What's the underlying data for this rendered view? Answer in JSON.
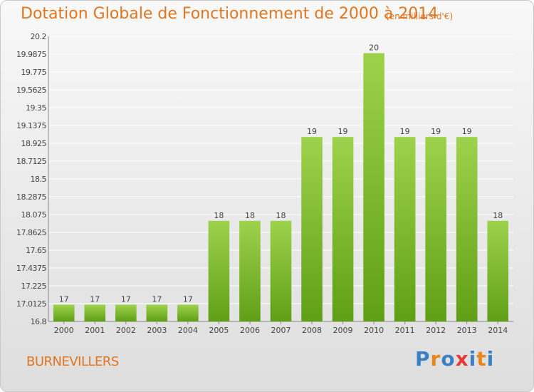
{
  "title": "Dotation Globale de Fonctionnement de 2000 à 2014",
  "unit_note": "(en milliers d'€)",
  "commune": "BURNEVILLERS",
  "logo": {
    "letters": [
      "P",
      "r",
      "o",
      "x",
      "i",
      "t",
      "i"
    ],
    "colors": [
      "#3b7fc4",
      "#e8861c",
      "#3b7fc4",
      "#e23b3b",
      "#3b7fc4",
      "#e8861c",
      "#3b7fc4"
    ]
  },
  "colors": {
    "bar_top": "#9ed24c",
    "bar_bottom": "#5f9f16",
    "text": "#e07620",
    "grid": "#ffffff"
  },
  "chart_data": {
    "type": "bar",
    "title": "Dotation Globale de Fonctionnement de 2000 à 2014",
    "xlabel": "",
    "ylabel": "",
    "categories": [
      "2000",
      "2001",
      "2002",
      "2003",
      "2004",
      "2005",
      "2006",
      "2007",
      "2008",
      "2009",
      "2010",
      "2011",
      "2012",
      "2013",
      "2014"
    ],
    "values": [
      17,
      17,
      17,
      17,
      17,
      18,
      18,
      18,
      19,
      19,
      20,
      19,
      19,
      19,
      18
    ],
    "ylim": [
      16.8,
      20.2
    ],
    "yticks": [
      "16.8",
      "17.0125",
      "17.225",
      "17.4375",
      "17.65",
      "17.8625",
      "18.075",
      "18.2875",
      "18.5",
      "18.7125",
      "18.925",
      "19.1375",
      "19.35",
      "19.5625",
      "19.775",
      "19.9875",
      "20.2"
    ],
    "grid": true,
    "legend": "none"
  }
}
